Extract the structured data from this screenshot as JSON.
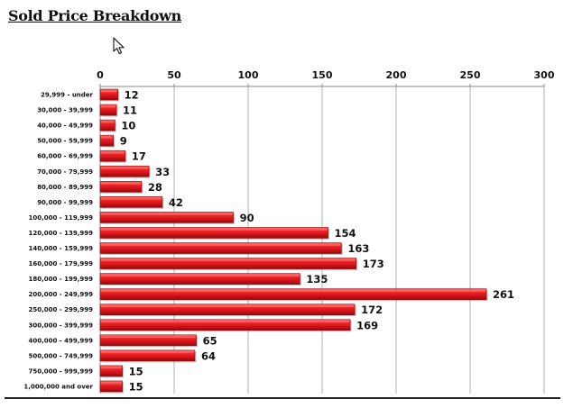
{
  "page": {
    "title": "Sold Price Breakdown"
  },
  "chart_data": {
    "type": "bar",
    "orientation": "horizontal",
    "categories": [
      "29,999 - under",
      "30,000 - 39,999",
      "40,000 - 49,999",
      "50,000 - 59,999",
      "60,000 - 69,999",
      "70,000 - 79,999",
      "80,000 - 89,999",
      "90,000 - 99,999",
      "100,000 - 119,999",
      "120,000 - 139,999",
      "140,000 - 159,999",
      "160,000 - 179,999",
      "180,000 - 199,999",
      "200,000 - 249,999",
      "250,000 - 299,999",
      "300,000 - 399,999",
      "400,000 - 499,999",
      "500,000 - 749,999",
      "750,000 - 999,999",
      "1,000,000 and over"
    ],
    "values": [
      12,
      11,
      10,
      9,
      17,
      33,
      28,
      42,
      90,
      154,
      163,
      173,
      135,
      261,
      172,
      169,
      65,
      64,
      15,
      15
    ],
    "data_labels": [
      "12",
      "11",
      "10",
      "9",
      "17",
      "33",
      "28",
      "42",
      "90",
      "154",
      "163",
      "173",
      "135",
      "261",
      "172",
      "169",
      "65",
      "64",
      "15",
      "15"
    ],
    "xlim": [
      0,
      300
    ],
    "xticks": [
      0,
      50,
      100,
      150,
      200,
      250,
      300
    ],
    "xtick_labels": [
      "0",
      "50",
      "100",
      "150",
      "200",
      "250",
      "300"
    ],
    "axis_position": "top",
    "grid": true,
    "legend": "none",
    "colors": {
      "bar": "#e0161b",
      "bar_dark": "#8e0b0e",
      "bar_light": "#ff6a6a",
      "grid": "#b0b0b0",
      "axis": "#888888"
    }
  }
}
